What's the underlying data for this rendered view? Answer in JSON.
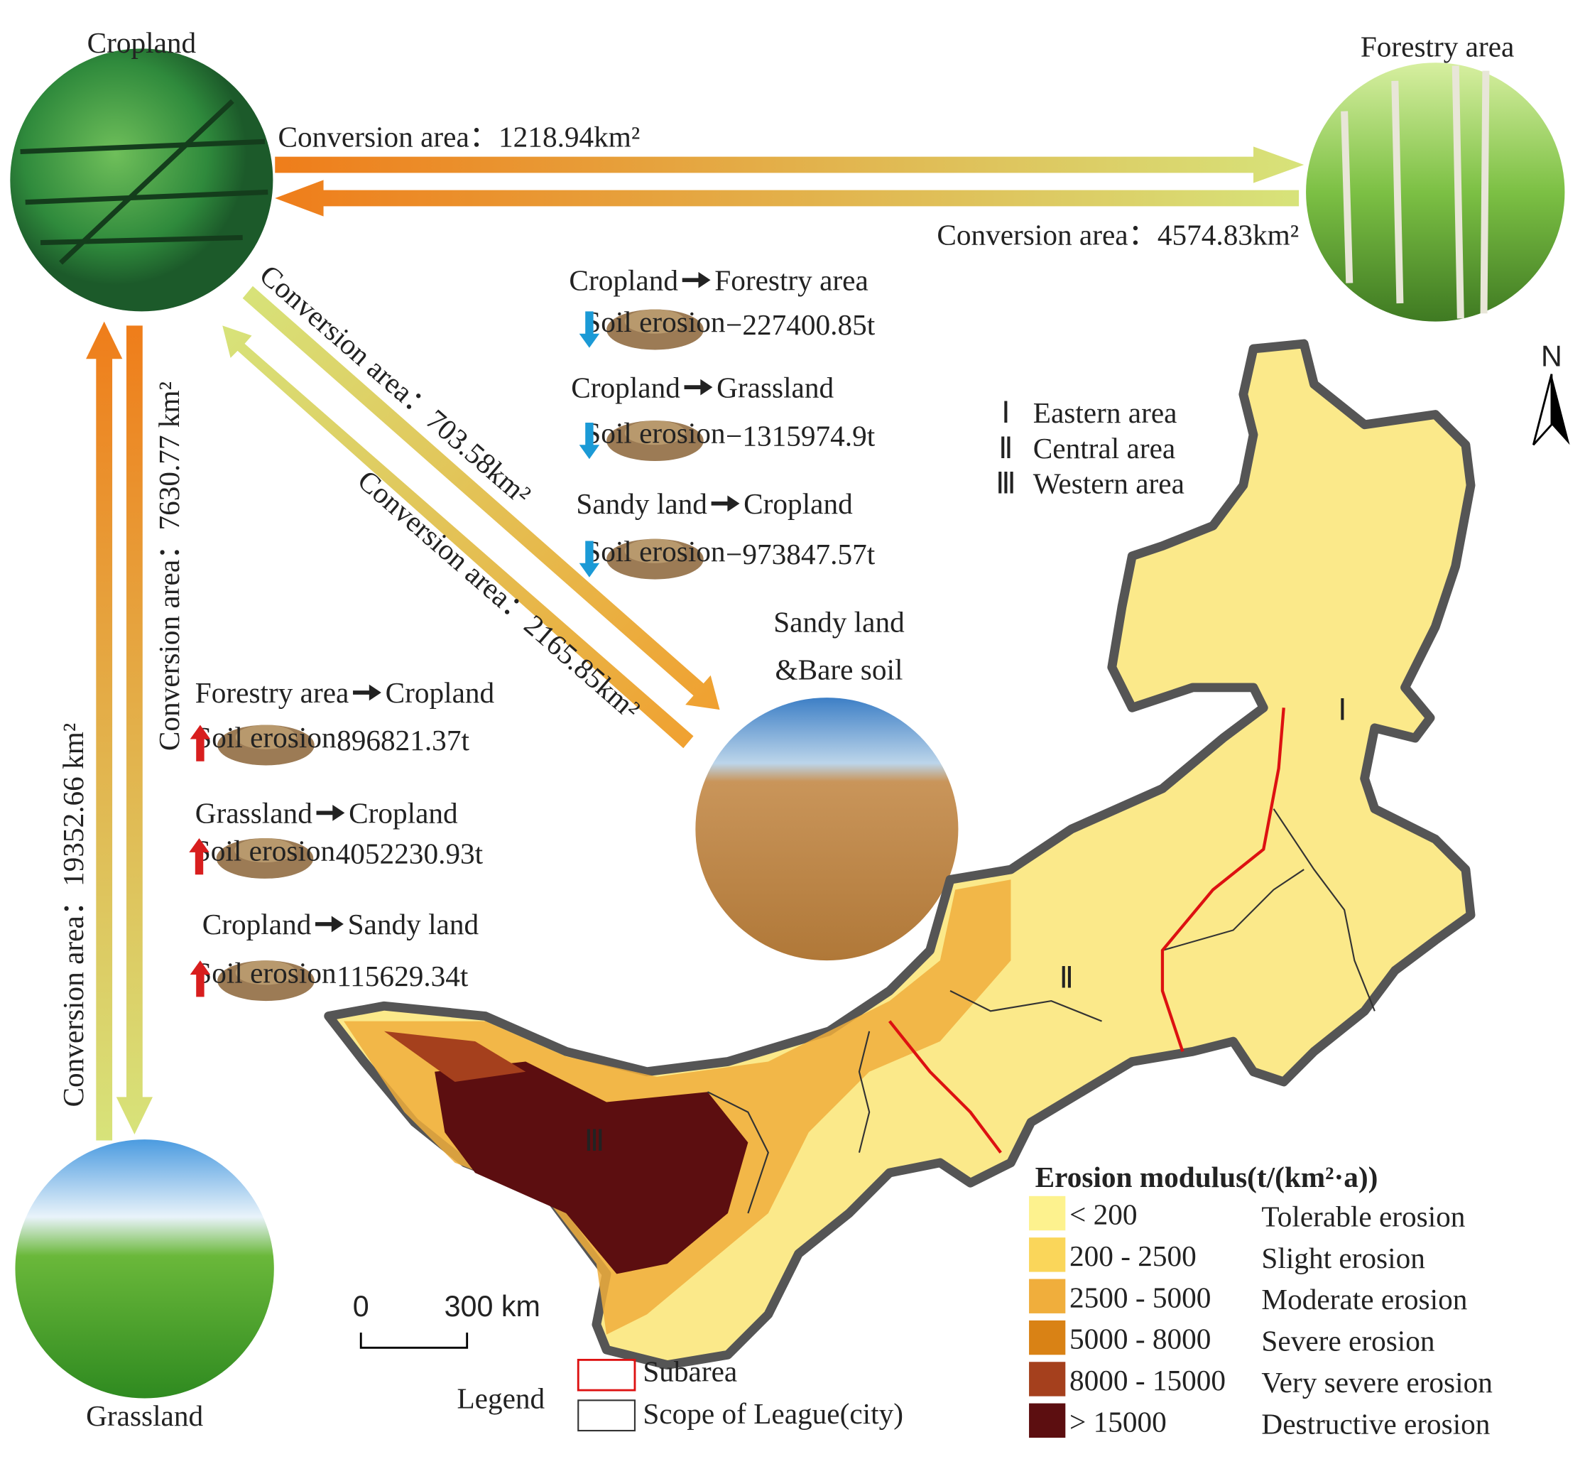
{
  "nodes": {
    "cropland": "Cropland",
    "forestry": "Forestry area",
    "sandy": [
      "Sandy land",
      "&Bare soil"
    ],
    "grassland": "Grassland"
  },
  "conversions": [
    "Conversion area：1218.94km²",
    "Conversion area：4574.83km²",
    "Conversion area：703.58km²",
    "Conversion area：2165.85km²",
    "Conversion area：7630.77 km²",
    "Conversion area：19352.66 km²"
  ],
  "erosion_changes": [
    {
      "from": "Cropland",
      "to": "Forestry area",
      "label": "Soil erosion",
      "value": "−227400.85t"
    },
    {
      "from": "Cropland",
      "to": "Grassland",
      "label": "Soil erosion",
      "value": "−1315974.9t"
    },
    {
      "from": "Sandy land",
      "to": "Cropland",
      "label": "Soil erosion",
      "value": "−973847.57t"
    },
    {
      "from": "Forestry area",
      "to": "Cropland",
      "label": "Soil erosion",
      "value": "896821.37t"
    },
    {
      "from": "Grassland",
      "to": "Cropland",
      "label": "Soil erosion",
      "value": "4052230.93t"
    },
    {
      "from": "Cropland",
      "to": "Sandy land",
      "label": "Soil erosion",
      "value": "115629.34t"
    }
  ],
  "regions": [
    {
      "numeral": "Ⅰ",
      "name": "Eastern area"
    },
    {
      "numeral": "Ⅱ",
      "name": "Central area"
    },
    {
      "numeral": "Ⅲ",
      "name": "Western area"
    }
  ],
  "north": "N",
  "scale_bar": {
    "start": "0",
    "end": "300 km"
  },
  "legend": {
    "title": "Legend",
    "subarea": "Subarea",
    "league": "Scope of League(city)"
  },
  "erosion_legend": {
    "title": "Erosion modulus(t/(km²·a))",
    "classes": [
      {
        "range": "< 200",
        "grade": "Tolerable erosion",
        "color": "#fdf28e"
      },
      {
        "range": "200 - 2500",
        "grade": "Slight erosion",
        "color": "#fad65a"
      },
      {
        "range": "2500 - 5000",
        "grade": "Moderate erosion",
        "color": "#f0ae3c"
      },
      {
        "range": "5000 - 8000",
        "grade": "Severe erosion",
        "color": "#d98215"
      },
      {
        "range": "8000 - 15000",
        "grade": "Very severe erosion",
        "color": "#a5401d"
      },
      {
        "range": "> 15000",
        "grade": "Destructive erosion",
        "color": "#5c0e10"
      }
    ]
  }
}
